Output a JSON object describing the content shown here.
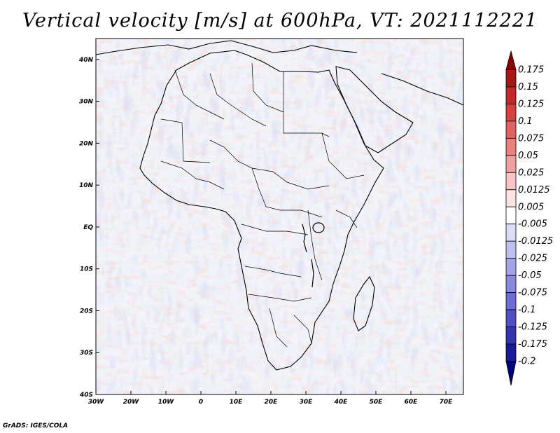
{
  "title": "Vertical velocity [m/s] at 600hPa, VT: 2021112221",
  "footer": "GrADS: IGES/COLA",
  "map": {
    "region": "Africa",
    "lon_range": [
      -30,
      75
    ],
    "lat_range": [
      -40,
      45
    ],
    "x_ticks": [
      "30W",
      "20W",
      "10W",
      "0",
      "10E",
      "20E",
      "30E",
      "40E",
      "50E",
      "60E",
      "70E"
    ],
    "x_tick_values": [
      -30,
      -20,
      -10,
      0,
      10,
      20,
      30,
      40,
      50,
      60,
      70
    ],
    "y_ticks": [
      "40S",
      "30S",
      "20S",
      "10S",
      "EQ",
      "10N",
      "20N",
      "30N",
      "40N"
    ],
    "y_tick_values": [
      -40,
      -30,
      -20,
      -10,
      0,
      10,
      20,
      30,
      40
    ]
  },
  "colorbar": {
    "labels": [
      "0.175",
      "0.15",
      "0.125",
      "0.1",
      "0.075",
      "0.05",
      "0.025",
      "0.0125",
      "0.005",
      "-0.005",
      "-0.0125",
      "-0.025",
      "-0.05",
      "-0.075",
      "-0.1",
      "-0.125",
      "-0.175",
      "-0.2"
    ],
    "colors": [
      "#8b0000",
      "#a81818",
      "#c42828",
      "#d84040",
      "#e46060",
      "#ec8080",
      "#f2a0a0",
      "#f8c4c4",
      "#fce4e4",
      "#ffffff",
      "#dcdcf6",
      "#c0c0f0",
      "#a4a4e8",
      "#8888de",
      "#6c6cd4",
      "#5050c4",
      "#3434b4",
      "#1a1a9c",
      "#000080"
    ]
  }
}
